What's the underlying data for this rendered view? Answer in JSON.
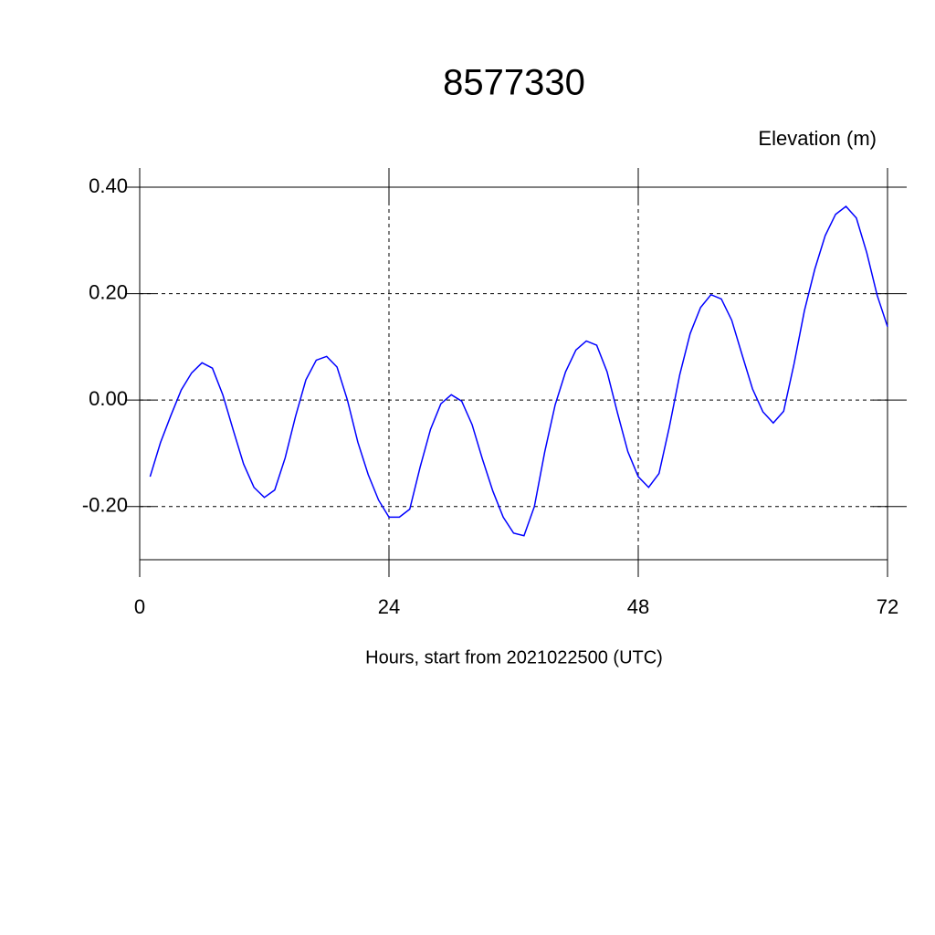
{
  "chart_data": {
    "type": "line",
    "title": "8577330",
    "subtitle": "Elevation (m)",
    "x_label": "Hours, start from 2021022500 (UTC)",
    "x": [
      1,
      2,
      3,
      4,
      5,
      6,
      7,
      8,
      9,
      10,
      11,
      12,
      13,
      14,
      15,
      16,
      17,
      18,
      19,
      20,
      21,
      22,
      23,
      24,
      25,
      26,
      27,
      28,
      29,
      30,
      31,
      32,
      33,
      34,
      35,
      36,
      37,
      38,
      39,
      40,
      41,
      42,
      43,
      44,
      45,
      46,
      47,
      48,
      49,
      50,
      51,
      52,
      53,
      54,
      55,
      56,
      57,
      58,
      59,
      60,
      61,
      62,
      63,
      64,
      65,
      66,
      67,
      68,
      69,
      70,
      71,
      72
    ],
    "series": [
      {
        "name": "Elevation",
        "color": "#0000ff",
        "values": [
          -0.144,
          -0.08,
          -0.029,
          0.019,
          0.051,
          0.07,
          0.06,
          0.01,
          -0.056,
          -0.12,
          -0.164,
          -0.183,
          -0.169,
          -0.109,
          -0.031,
          0.038,
          0.075,
          0.082,
          0.062,
          0.0,
          -0.079,
          -0.14,
          -0.188,
          -0.22,
          -0.22,
          -0.205,
          -0.126,
          -0.055,
          -0.007,
          0.01,
          -0.002,
          -0.046,
          -0.111,
          -0.171,
          -0.22,
          -0.25,
          -0.255,
          -0.2,
          -0.097,
          -0.009,
          0.053,
          0.094,
          0.111,
          0.103,
          0.053,
          -0.024,
          -0.097,
          -0.144,
          -0.164,
          -0.138,
          -0.05,
          0.048,
          0.125,
          0.174,
          0.198,
          0.19,
          0.15,
          0.085,
          0.021,
          -0.022,
          -0.043,
          -0.021,
          0.068,
          0.168,
          0.246,
          0.309,
          0.349,
          0.364,
          0.342,
          0.277,
          0.197,
          0.138
        ]
      }
    ],
    "xlim": [
      0,
      72
    ],
    "xticks": [
      0,
      24,
      48,
      72
    ],
    "ylim": [
      -0.3,
      0.4
    ],
    "yticks": [
      {
        "value": -0.2,
        "label": "-0.20"
      },
      {
        "value": 0,
        "label": "0.00"
      },
      {
        "value": 0.2,
        "label": "0.20"
      },
      {
        "value": 0.4,
        "label": "0.40"
      }
    ],
    "grid": true
  }
}
